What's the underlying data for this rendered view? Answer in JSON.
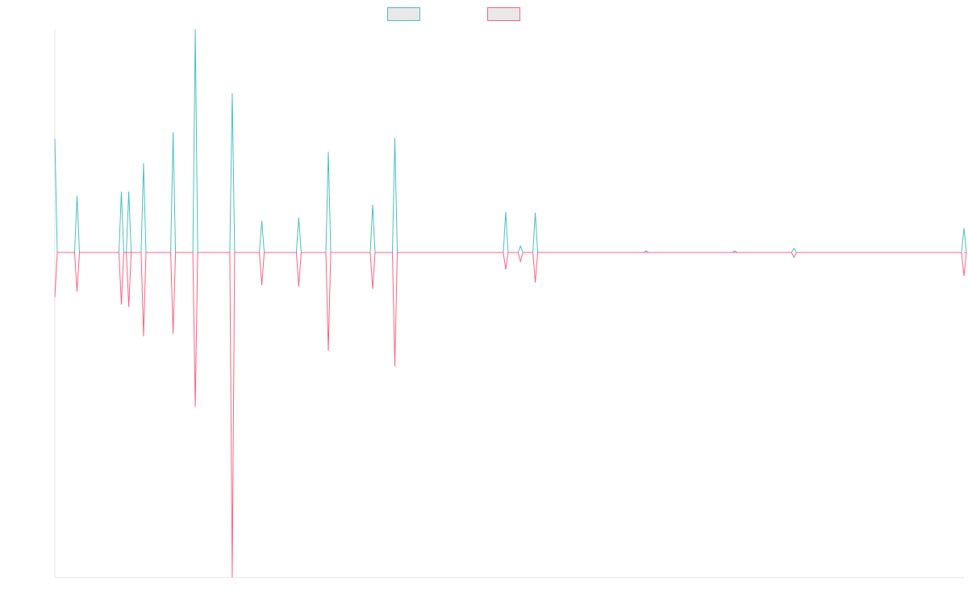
{
  "chart_data": {
    "type": "line",
    "title": "",
    "xlabel": "",
    "ylabel": "",
    "legend": {
      "placement": "top-center",
      "visible": true
    },
    "grid": false,
    "x": [
      0,
      3,
      9,
      12,
      16,
      19,
      24,
      28,
      33,
      37,
      43,
      46,
      52,
      54,
      60,
      61,
      63,
      65,
      70,
      75,
      80,
      85,
      86,
      90,
      92,
      95,
      98,
      100,
      106,
      116,
      123
    ],
    "series": [
      {
        "color": "#4bc0c0",
        "values": [
          140,
          70,
          75,
          110,
          148,
          275,
          196,
          39,
          43,
          124,
          59,
          141,
          0,
          0,
          0,
          50,
          8,
          49,
          0,
          0,
          2,
          0,
          0,
          0,
          2,
          0,
          0,
          5,
          0,
          0,
          30
        ]
      },
      {
        "color": "#ff6384",
        "values": [
          -55,
          -48,
          -64,
          -103,
          -100,
          -190,
          -400,
          -40,
          -42,
          -121,
          -45,
          -140,
          0,
          0,
          0,
          -21,
          -11,
          -37,
          0,
          0,
          0,
          0,
          0,
          0,
          0,
          0,
          0,
          -6,
          0,
          0,
          -29
        ]
      }
    ],
    "second_peak_at_x": [
      10,
      10
    ],
    "second_peak_values": [
      75,
      -67
    ],
    "xlim": [
      0,
      123
    ],
    "ylim": [
      -400,
      275
    ]
  }
}
